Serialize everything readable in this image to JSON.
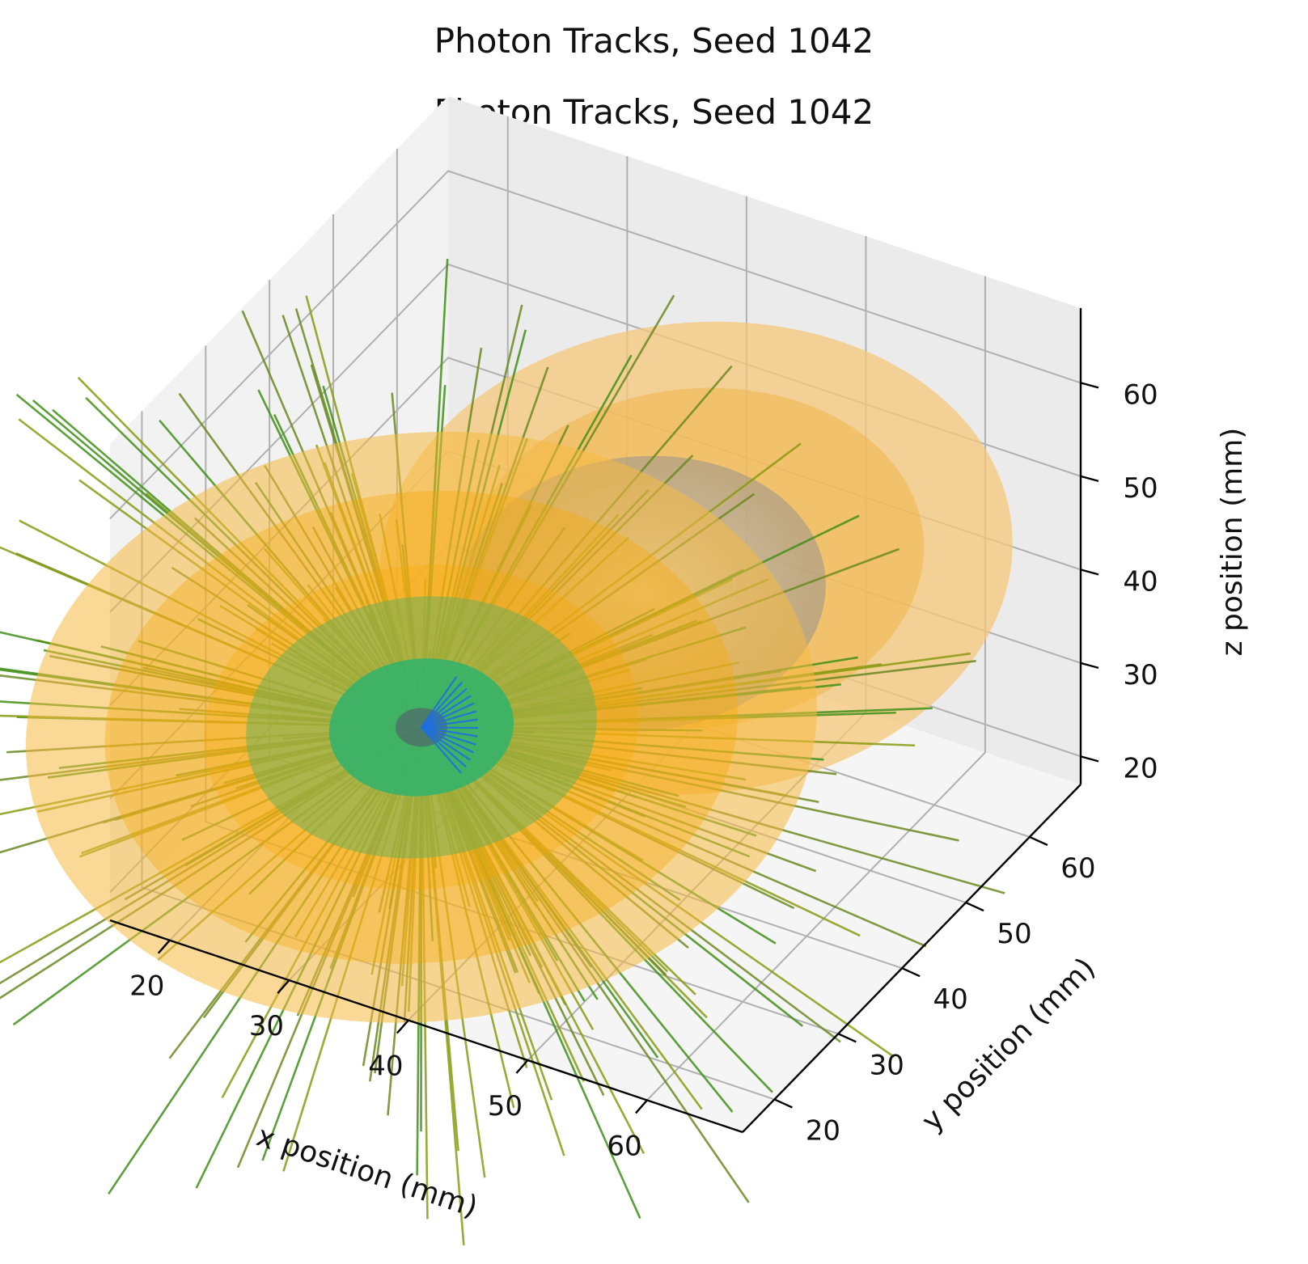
{
  "chart_data": {
    "type": "scatter",
    "subtype": "3d-line-tracks",
    "title": "Photon Tracks, Seed 1042",
    "subtitle": "Photon Tracks, Seed 1042",
    "xlabel": "x position (mm)",
    "ylabel": "y position (mm)",
    "zlabel": "z position (mm)",
    "xlim": [
      15,
      68
    ],
    "ylim": [
      15,
      68
    ],
    "zlim": [
      17,
      68
    ],
    "x_ticks": [
      "20",
      "30",
      "40",
      "50",
      "60"
    ],
    "y_ticks": [
      "20",
      "30",
      "40",
      "50",
      "60"
    ],
    "z_ticks": [
      "20",
      "30",
      "40",
      "50",
      "60"
    ],
    "grid": true,
    "source_point": {
      "x": 32,
      "y": 32,
      "z": 33
    },
    "shells": [
      {
        "kind": "orange-shell",
        "center": [
          32,
          32,
          33
        ],
        "radius": 30,
        "color": "#f5b942"
      },
      {
        "kind": "orange-shell",
        "center": [
          47,
          47,
          47
        ],
        "radius": 24,
        "color": "#f5b942"
      },
      {
        "kind": "gray-shell",
        "center": [
          44,
          44,
          44
        ],
        "radius": 14,
        "color": "#9e9e9e"
      },
      {
        "kind": "green-core",
        "center": [
          32,
          32,
          33
        ],
        "radius": 7,
        "color": "#2fb36b"
      }
    ],
    "colors": {
      "shell": "#f5b942",
      "track_green": "#3f8f16",
      "track_olive": "#8a9a12",
      "core_blue": "#1f6fe0",
      "grid": "#b0b0b0"
    }
  }
}
